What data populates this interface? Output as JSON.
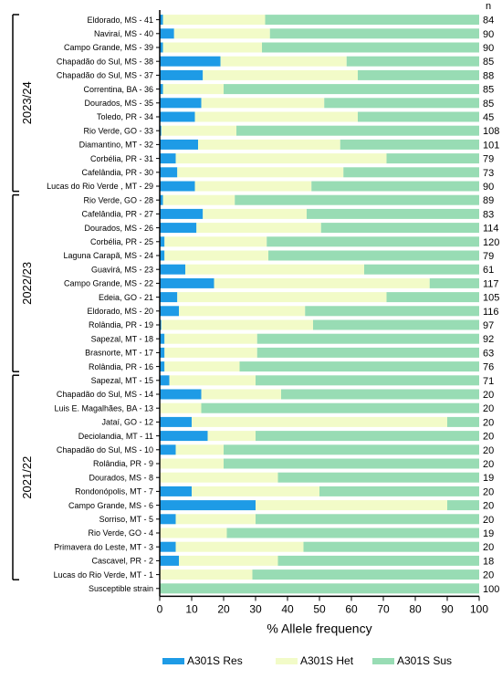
{
  "chart_data": {
    "type": "bar",
    "orientation": "horizontal",
    "stacked": true,
    "xlabel": "% Allele frequency",
    "xlim": [
      0,
      100
    ],
    "xticks": [
      "0",
      "10",
      "20",
      "30",
      "40",
      "50",
      "60",
      "70",
      "80",
      "90",
      "100"
    ],
    "n_header": "n",
    "categories": [
      "Eldorado, MS - 41",
      "Naviraí, MS - 40",
      "Campo Grande, MS - 39",
      "Chapadão do Sul, MS - 38",
      "Chapadão do Sul, MS - 37",
      "Correntina, BA - 36",
      "Dourados, MS - 35",
      "Toledo, PR - 34",
      "Rio Verde, GO - 33",
      "Diamantino, MT - 32",
      "Corbélia, PR - 31",
      "Cafelândia, PR - 30",
      "Lucas do Rio Verde , MT - 29",
      "Rio Verde, GO - 28",
      "Cafelândia, PR - 27",
      "Dourados, MS - 26",
      "Corbélia, PR - 25",
      "Laguna Carapã, MS - 24",
      "Guavirá, MS - 23",
      "Campo Grande, MS - 22",
      "Edeia, GO - 21",
      "Eldorado, MS - 20",
      "Rolândia, PR - 19",
      "Sapezal, MT - 18",
      "Brasnorte, MT - 17",
      "Rolândia, PR - 16",
      "Sapezal, MT - 15",
      "Chapadão do Sul, MS - 14",
      "Luis E. Magalhães, BA - 13",
      "Jataí, GO - 12",
      "Deciolandia, MT - 11",
      "Chapadão do Sul, MS - 10",
      "Rolândia, PR - 9",
      "Dourados, MS - 8",
      "Rondonópolis, MT - 7",
      "Campo Grande, MS - 6",
      "Sorriso, MT - 5",
      "Rio Verde, GO - 4",
      "Primavera do Leste, MT - 3",
      "Cascavel, PR - 2",
      "Lucas do Rio Verde, MT - 1",
      "Susceptible strain"
    ],
    "n": [
      "84",
      "90",
      "90",
      "85",
      "88",
      "85",
      "85",
      "45",
      "108",
      "101",
      "79",
      "73",
      "90",
      "89",
      "83",
      "114",
      "120",
      "79",
      "61",
      "117",
      "105",
      "116",
      "97",
      "92",
      "63",
      "76",
      "71",
      "20",
      "20",
      "20",
      "20",
      "20",
      "20",
      "19",
      "20",
      "20",
      "20",
      "19",
      "20",
      "18",
      "20",
      "100"
    ],
    "series": [
      {
        "name": "A301S Res",
        "color": "#1e9be6",
        "values": [
          1,
          4.5,
          1,
          19,
          13.5,
          1,
          13,
          11,
          0.5,
          12,
          5,
          5.5,
          11,
          1,
          13.5,
          11.5,
          1.5,
          1.5,
          8,
          17,
          5.5,
          6,
          0.5,
          1.5,
          1.5,
          1.5,
          3,
          13,
          0,
          10,
          15,
          5,
          0,
          0,
          10,
          30,
          5,
          0,
          5,
          6,
          0,
          0
        ]
      },
      {
        "name": "A301S Het",
        "color": "#f2fbc8",
        "values": [
          32,
          30,
          31,
          39.5,
          48.5,
          19,
          38.5,
          51,
          23.5,
          44.5,
          66,
          52,
          36.5,
          22.5,
          32.5,
          39,
          32,
          32.5,
          56,
          67.5,
          65.5,
          39.5,
          47.5,
          29,
          29,
          23.5,
          27,
          25,
          13,
          80,
          15,
          15,
          20,
          37,
          40,
          60,
          25,
          21,
          40,
          31,
          29,
          0
        ]
      },
      {
        "name": "A301S Sus",
        "color": "#98dcb4",
        "values": [
          67,
          65.5,
          68,
          41.5,
          38,
          80,
          48.5,
          38,
          76,
          43.5,
          29,
          42.5,
          52.5,
          76.5,
          54,
          49.5,
          66.5,
          66,
          36,
          15.5,
          29,
          54.5,
          52,
          69.5,
          69.5,
          75,
          70,
          62,
          87,
          10,
          70,
          80,
          80,
          63,
          50,
          10,
          70,
          79,
          55,
          63,
          71,
          100
        ]
      }
    ],
    "groups": [
      {
        "label": "2023/24",
        "first": 0,
        "last": 12
      },
      {
        "label": "2022/23",
        "first": 13,
        "last": 25
      },
      {
        "label": "2021/22",
        "first": 26,
        "last": 40
      }
    ]
  }
}
